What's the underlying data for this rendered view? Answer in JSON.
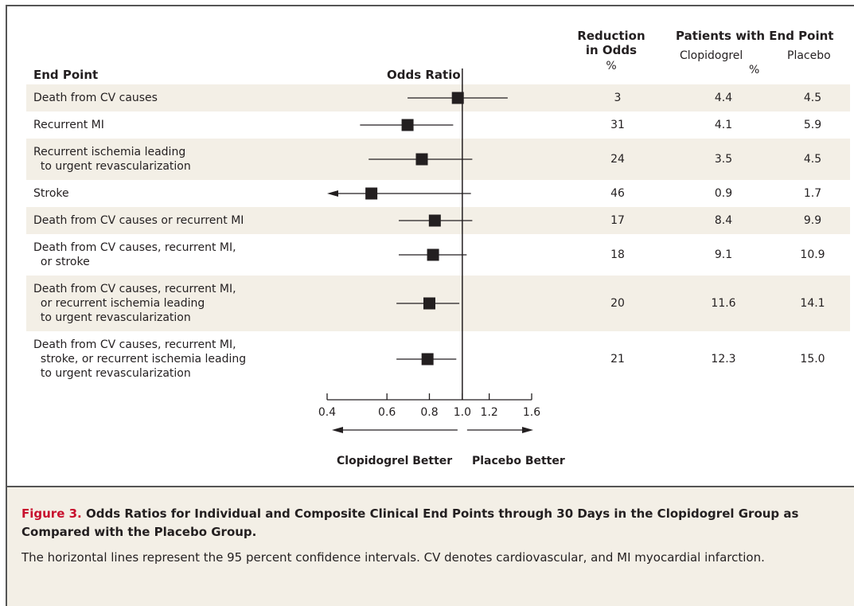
{
  "headers": {
    "end_point": "End Point",
    "odds_ratio": "Odds Ratio",
    "reduction_line1": "Reduction",
    "reduction_line2": "in Odds",
    "reduction_unit": "%",
    "patients": "Patients with End Point",
    "clopidogrel": "Clopidogrel",
    "placebo": "Placebo",
    "patients_unit": "%"
  },
  "chart_data": {
    "type": "forest",
    "x_scale": "log",
    "xlim": [
      0.4,
      1.6
    ],
    "reference_line": 1.0,
    "ticks": [
      0.4,
      0.6,
      0.8,
      1.0,
      1.2,
      1.6
    ],
    "tick_labels": [
      "0.4",
      "0.6",
      "0.8",
      "1.0",
      "1.2",
      "1.6"
    ],
    "direction_labels": [
      "Clopidogrel Better",
      "Placebo Better"
    ],
    "rows": [
      {
        "lines": [
          "Death from CV causes"
        ],
        "or": 0.97,
        "lo": 0.69,
        "hi": 1.36,
        "reduction": "3",
        "clopidogrel": "4.4",
        "placebo": "4.5",
        "arrow_left": false
      },
      {
        "lines": [
          "Recurrent MI"
        ],
        "or": 0.69,
        "lo": 0.5,
        "hi": 0.94,
        "reduction": "31",
        "clopidogrel": "4.1",
        "placebo": "5.9",
        "arrow_left": false
      },
      {
        "lines": [
          "Recurrent ischemia leading",
          "  to urgent revascularization"
        ],
        "or": 0.76,
        "lo": 0.53,
        "hi": 1.07,
        "reduction": "24",
        "clopidogrel": "3.5",
        "placebo": "4.5",
        "arrow_left": false
      },
      {
        "lines": [
          "Stroke"
        ],
        "or": 0.54,
        "lo": 0.4,
        "hi": 1.06,
        "reduction": "46",
        "clopidogrel": "0.9",
        "placebo": "1.7",
        "arrow_left": true
      },
      {
        "lines": [
          "Death from CV causes or recurrent MI"
        ],
        "or": 0.83,
        "lo": 0.65,
        "hi": 1.07,
        "reduction": "17",
        "clopidogrel": "8.4",
        "placebo": "9.9",
        "arrow_left": false
      },
      {
        "lines": [
          "Death from CV causes, recurrent MI,",
          "  or stroke"
        ],
        "or": 0.82,
        "lo": 0.65,
        "hi": 1.03,
        "reduction": "18",
        "clopidogrel": "9.1",
        "placebo": "10.9",
        "arrow_left": false
      },
      {
        "lines": [
          "Death from CV causes, recurrent MI,",
          "  or recurrent ischemia leading",
          "  to urgent revascularization"
        ],
        "or": 0.8,
        "lo": 0.64,
        "hi": 0.98,
        "reduction": "20",
        "clopidogrel": "11.6",
        "placebo": "14.1",
        "arrow_left": false
      },
      {
        "lines": [
          "Death from CV causes, recurrent MI,",
          "  stroke, or recurrent ischemia leading",
          "  to urgent revascularization"
        ],
        "or": 0.79,
        "lo": 0.64,
        "hi": 0.96,
        "reduction": "21",
        "clopidogrel": "12.3",
        "placebo": "15.0",
        "arrow_left": false
      }
    ]
  },
  "caption": {
    "figure_label": "Figure 3.",
    "title": "Odds Ratios for Individual and Composite Clinical End Points through 30 Days in the Clopidogrel Group as Compared with the Placebo Group.",
    "text": "The horizontal lines represent the 95 percent confidence intervals. CV denotes cardiovascular, and MI myocardial infarction."
  },
  "colors": {
    "band": "#f3efe6",
    "text": "#231f20",
    "figure_label": "#c8102e"
  }
}
